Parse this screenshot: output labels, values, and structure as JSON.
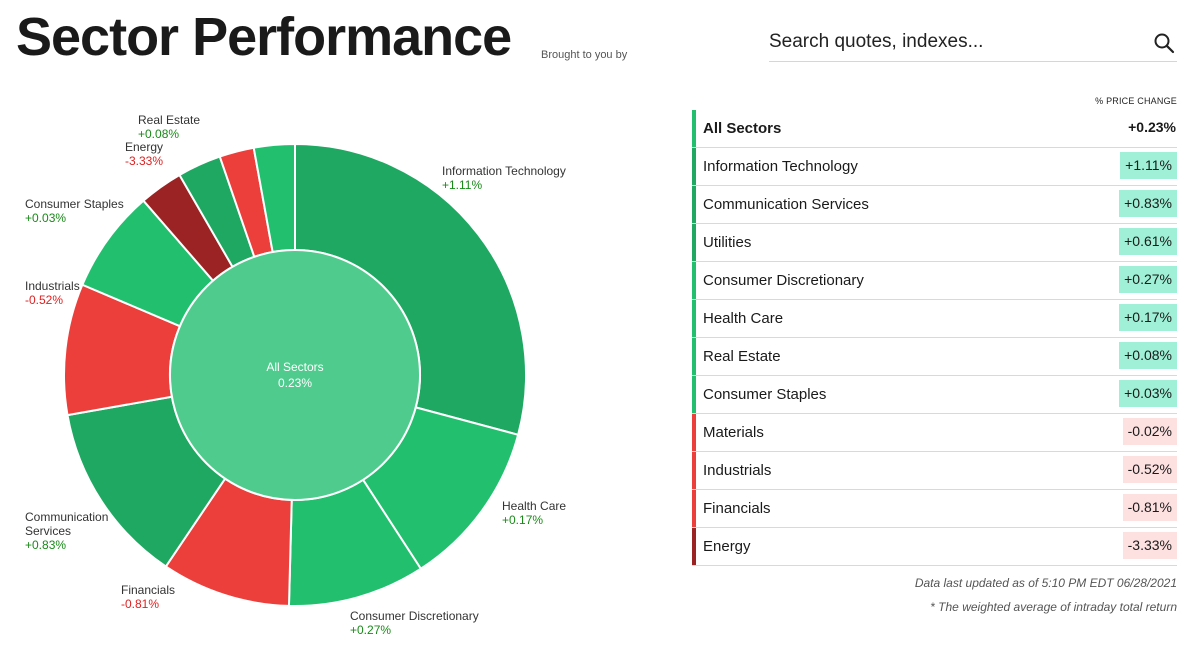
{
  "header": {
    "title": "Sector Performance",
    "sponsor": "Brought to you by",
    "search_placeholder": "Search quotes, indexes..."
  },
  "colors": {
    "positive_dark": "#1fa862",
    "positive": "#22c06e",
    "negative": "#ec3f3b",
    "negative_dark": "#9b2323",
    "center": "#4ecb8d",
    "positive_badge": "#9ff0d6",
    "negative_badge": "#fde0e0"
  },
  "chart_data": {
    "type": "pie",
    "center_label": "All Sectors",
    "center_value": "0.23%",
    "sectors": [
      {
        "name": "Information Technology",
        "change": "+1.11%",
        "value": 1.11
      },
      {
        "name": "Health Care",
        "change": "+0.17%",
        "value": 0.17
      },
      {
        "name": "Consumer Discretionary",
        "change": "+0.27%",
        "value": 0.27
      },
      {
        "name": "Financials",
        "change": "-0.81%",
        "value": -0.81
      },
      {
        "name": "Communication Services",
        "change": "+0.83%",
        "value": 0.83
      },
      {
        "name": "Industrials",
        "change": "-0.52%",
        "value": -0.52
      },
      {
        "name": "Consumer Staples",
        "change": "+0.03%",
        "value": 0.03
      },
      {
        "name": "Energy",
        "change": "-3.33%",
        "value": -3.33
      },
      {
        "name": "Utilities",
        "change": "+0.61%",
        "value": 0.61
      },
      {
        "name": "Materials",
        "change": "-0.02%",
        "value": -0.02
      },
      {
        "name": "Real Estate",
        "change": "+0.08%",
        "value": 0.08
      }
    ]
  },
  "table": {
    "header": "% PRICE CHANGE",
    "rows": [
      {
        "name": "All Sectors",
        "value": "+0.23%"
      },
      {
        "name": "Information Technology",
        "value": "+1.11%"
      },
      {
        "name": "Communication Services",
        "value": "+0.83%"
      },
      {
        "name": "Utilities",
        "value": "+0.61%"
      },
      {
        "name": "Consumer Discretionary",
        "value": "+0.27%"
      },
      {
        "name": "Health Care",
        "value": "+0.17%"
      },
      {
        "name": "Real Estate",
        "value": "+0.08%"
      },
      {
        "name": "Consumer Staples",
        "value": "+0.03%"
      },
      {
        "name": "Materials",
        "value": "-0.02%"
      },
      {
        "name": "Industrials",
        "value": "-0.52%"
      },
      {
        "name": "Financials",
        "value": "-0.81%"
      },
      {
        "name": "Energy",
        "value": "-3.33%"
      }
    ]
  },
  "footnotes": {
    "updated": "Data last updated as of 5:10 PM EDT 06/28/2021",
    "weighted": "* The weighted average of intraday total return"
  }
}
